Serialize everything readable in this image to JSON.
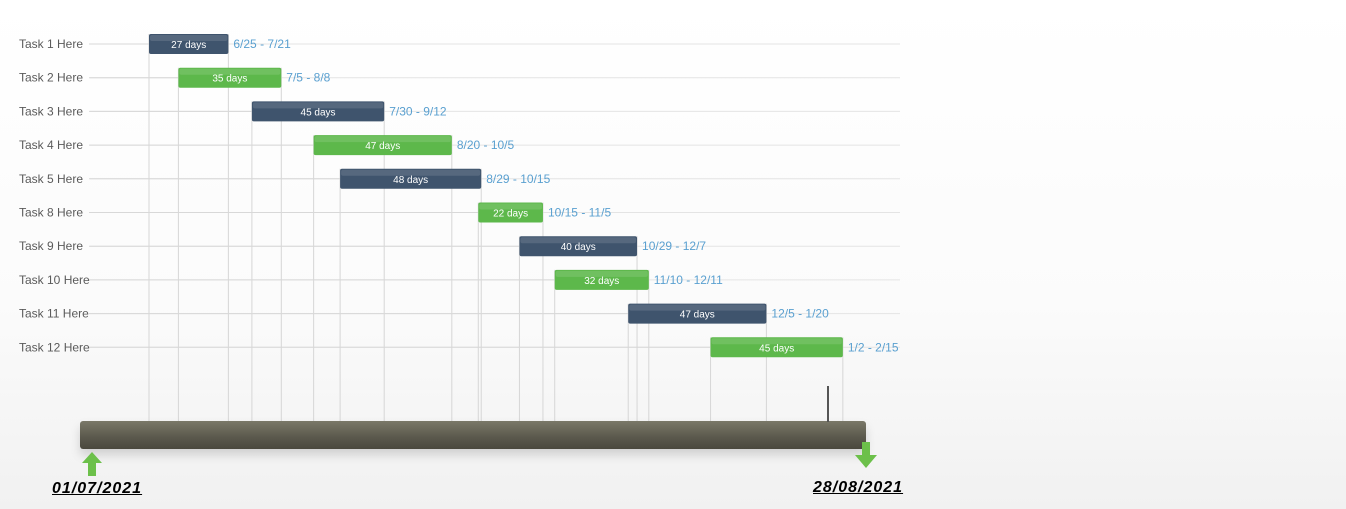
{
  "chart_data": {
    "type": "gantt",
    "title": "",
    "date_start": "01/07/2021",
    "date_end": "28/08/2021",
    "colors": {
      "dark": "#3f546d",
      "green": "#5db84b",
      "date_text": "#5aa0d0",
      "grid": "#d6d6d6"
    },
    "tasks": [
      {
        "name": "Task 1 Here",
        "duration": "27 days",
        "range": "6/25 - 7/21",
        "start_day": 0,
        "days": 27,
        "color": "dark"
      },
      {
        "name": "Task 2 Here",
        "duration": "35 days",
        "range": "7/5 - 8/8",
        "start_day": 10,
        "days": 35,
        "color": "green"
      },
      {
        "name": "Task 3 Here",
        "duration": "45 days",
        "range": "7/30 - 9/12",
        "start_day": 35,
        "days": 45,
        "color": "dark"
      },
      {
        "name": "Task 4 Here",
        "duration": "47 days",
        "range": "8/20 - 10/5",
        "start_day": 56,
        "days": 47,
        "color": "green"
      },
      {
        "name": "Task 5 Here",
        "duration": "48 days",
        "range": "8/29 - 10/15",
        "start_day": 65,
        "days": 48,
        "color": "dark"
      },
      {
        "name": "Task 8 Here",
        "duration": "22 days",
        "range": "10/15 - 11/5",
        "start_day": 112,
        "days": 22,
        "color": "green"
      },
      {
        "name": "Task 9 Here",
        "duration": "40 days",
        "range": "10/29 - 12/7",
        "start_day": 126,
        "days": 40,
        "color": "dark"
      },
      {
        "name": "Task 10 Here",
        "duration": "32 days",
        "range": "11/10 - 12/11",
        "start_day": 138,
        "days": 32,
        "color": "green"
      },
      {
        "name": "Task 11 Here",
        "duration": "47 days",
        "range": "12/5 - 1/20",
        "start_day": 163,
        "days": 47,
        "color": "dark"
      },
      {
        "name": "Task 12 Here",
        "duration": "45 days",
        "range": "1/2 - 2/15",
        "start_day": 191,
        "days": 45,
        "color": "green"
      }
    ]
  }
}
